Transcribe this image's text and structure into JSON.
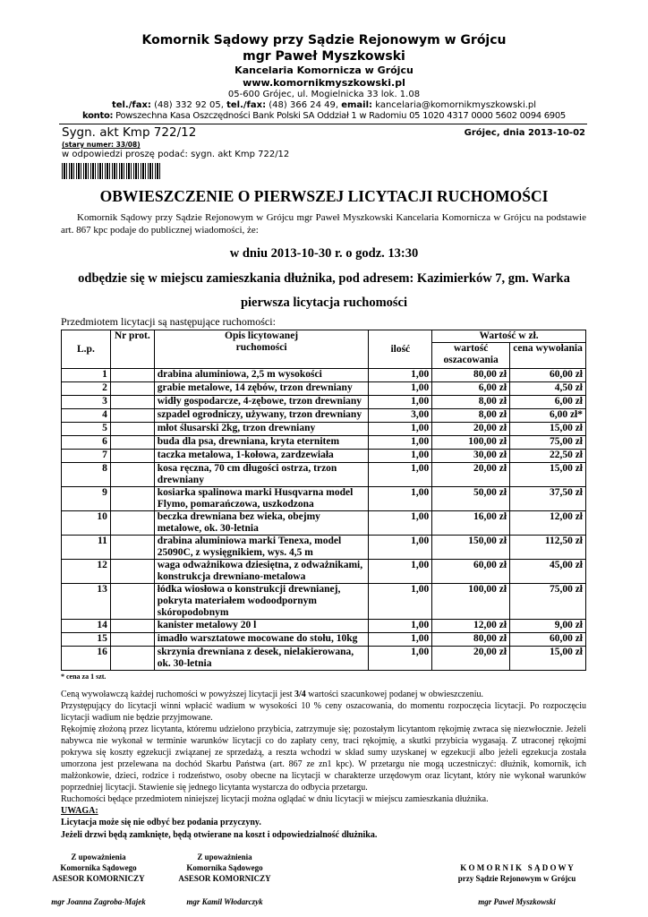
{
  "header": {
    "line1": "Komornik Sądowy przy Sądzie Rejonowym w Grójcu",
    "line2": "mgr Paweł Myszkowski",
    "line3": "Kancelaria Komornicza w Grójcu",
    "website": "www.komornikmyszkowski.pl",
    "address": "05-600 Grójec, ul. Mogielnicka 33 lok. 1.08",
    "tel1_label": "tel./fax:",
    "tel1": " (48) 332 92 05, ",
    "tel2_label": "tel./fax:",
    "tel2": " (48) 366 24 49, ",
    "email_label": "email:",
    "email": " kancelaria@komornikmyszkowski.pl",
    "konto_label": "konto:",
    "konto": " Powszechna Kasa Oszczędności Bank Polski SA Oddział 1 w Radomiu 05 1020 4317 0000 5602 0094 6905"
  },
  "ref": {
    "sygn": "Sygn. akt Kmp 722/12",
    "date": "Grójec, dnia 2013-10-02",
    "old_number": "(stary numer: 33/08)",
    "reply": "w odpowiedzi proszę podać: sygn. akt Kmp 722/12"
  },
  "title": "OBWIESZCZENIE O PIERWSZEJ LICYTACJI RUCHOMOŚCI",
  "intro": "Komornik Sądowy przy Sądzie Rejonowym w Grójcu mgr Paweł Myszkowski Kancelaria Komornicza w Grójcu na podstawie art. 867 kpc podaje do publicznej wiadomości, że:",
  "when": "w dniu 2013-10-30 r. o godz. 13:30",
  "where": "odbędzie się w miejscu zamieszkania dłużnika, pod adresem: Kazimierków 7, gm. Warka",
  "kind": "pierwsza licytacja ruchomości",
  "table_caption": "Przedmiotem licytacji są następujące ruchomości:",
  "table": {
    "headers": {
      "lp": "L.p.",
      "nr": "Nr prot.",
      "opis": "Opis licytowanej ruchomości",
      "ilosc": "ilość",
      "wartosc_group": "Wartość w zł.",
      "wartosc": "wartość oszacowania",
      "cena": "cena wywołania"
    },
    "rows": [
      {
        "lp": "1",
        "opis": "drabina aluminiowa, 2,5 m wysokości",
        "ilosc": "1,00",
        "wartosc": "80,00 zł",
        "cena": "60,00 zł"
      },
      {
        "lp": "2",
        "opis": "grabie metalowe, 14 zębów, trzon drewniany",
        "ilosc": "1,00",
        "wartosc": "6,00 zł",
        "cena": "4,50 zł"
      },
      {
        "lp": "3",
        "opis": "widły gospodarcze, 4-zębowe, trzon drewniany",
        "ilosc": "1,00",
        "wartosc": "8,00 zł",
        "cena": "6,00 zł"
      },
      {
        "lp": "4",
        "opis": "szpadel ogrodniczy, używany, trzon drewniany",
        "ilosc": "3,00",
        "wartosc": "8,00 zł",
        "cena": "6,00 zł*"
      },
      {
        "lp": "5",
        "opis": "młot ślusarski 2kg, trzon drewniany",
        "ilosc": "1,00",
        "wartosc": "20,00 zł",
        "cena": "15,00 zł"
      },
      {
        "lp": "6",
        "opis": "buda dla psa, drewniana, kryta eternitem",
        "ilosc": "1,00",
        "wartosc": "100,00 zł",
        "cena": "75,00 zł"
      },
      {
        "lp": "7",
        "opis": "taczka metalowa, 1-kołowa, zardzewiała",
        "ilosc": "1,00",
        "wartosc": "30,00 zł",
        "cena": "22,50 zł"
      },
      {
        "lp": "8",
        "opis": "kosa ręczna, 70 cm długości ostrza, trzon drewniany",
        "ilosc": "1,00",
        "wartosc": "20,00 zł",
        "cena": "15,00 zł"
      },
      {
        "lp": "9",
        "opis": "kosiarka spalinowa marki Husqvarna model Flymo, pomarańczowa, uszkodzona",
        "ilosc": "1,00",
        "wartosc": "50,00 zł",
        "cena": "37,50 zł"
      },
      {
        "lp": "10",
        "opis": "beczka drewniana bez wieka, obejmy metalowe, ok. 30-letnia",
        "ilosc": "1,00",
        "wartosc": "16,00 zł",
        "cena": "12,00 zł"
      },
      {
        "lp": "11",
        "opis": "drabina aluminiowa marki Tenexa, model 25090C, z wysięgnikiem, wys. 4,5 m",
        "ilosc": "1,00",
        "wartosc": "150,00 zł",
        "cena": "112,50 zł"
      },
      {
        "lp": "12",
        "opis": "waga odważnikowa dziesiętna, z odważnikami, konstrukcja drewniano-metalowa",
        "ilosc": "1,00",
        "wartosc": "60,00 zł",
        "cena": "45,00 zł"
      },
      {
        "lp": "13",
        "opis": "łódka wiosłowa o konstrukcji drewnianej, pokryta materiałem wodoodpornym skóropodobnym",
        "ilosc": "1,00",
        "wartosc": "100,00 zł",
        "cena": "75,00 zł"
      },
      {
        "lp": "14",
        "opis": "kanister metalowy 20 l",
        "ilosc": "1,00",
        "wartosc": "12,00 zł",
        "cena": "9,00 zł"
      },
      {
        "lp": "15",
        "opis": "imadło warsztatowe mocowane do stołu, 10kg",
        "ilosc": "1,00",
        "wartosc": "80,00 zł",
        "cena": "60,00 zł"
      },
      {
        "lp": "16",
        "opis": "skrzynia drewniana z desek, nielakierowana, ok. 30-letnia",
        "ilosc": "1,00",
        "wartosc": "20,00 zł",
        "cena": "15,00 zł"
      }
    ],
    "footnote": "* cena za 1 szt."
  },
  "terms": {
    "p1a": "Ceną wywoławczą każdej ruchomości w powyższej licytacji jest ",
    "p1b": "3/4",
    "p1c": " wartości szacunkowej podanej w obwieszczeniu.",
    "p2": "Przystępujący do licytacji winni wpłacić wadium w wysokości 10 % ceny oszacowania, do momentu rozpoczęcia licytacji. Po rozpoczęciu licytacji wadium nie będzie przyjmowane.",
    "p3": "Rękojmię złożoną przez licytanta, któremu udzielono przybicia, zatrzymuje się; pozostałym licytantom rękojmię zwraca się niezwłocznie. Jeżeli nabywca nie wykonał w terminie warunków licytacji co do zapłaty ceny, traci rękojmię, a skutki przybicia wygasają. Z utraconej rękojmi pokrywa się koszty egzekucji związanej ze sprzedażą, a reszta wchodzi w skład sumy uzyskanej w egzekucji albo jeżeli egzekucja została umorzona jest przelewana na dochód Skarbu Państwa (art. 867 ze zn1 kpc). W przetargu nie mogą uczestniczyć: dłużnik, komornik, ich małżonkowie, dzieci, rodzice i rodzeństwo, osoby obecne na licytacji w charakterze urzędowym oraz licytant, który nie wykonał warunków poprzedniej licytacji. Stawienie się jednego licytanta wystarcza do odbycia przetargu.",
    "p4": "Ruchomości będące przedmiotem niniejszej licytacji można oglądać w dniu licytacji w miejscu zamieszkania dłużnika.",
    "uwaga": "UWAGA:",
    "w1": "Licytacja może się nie odbyć bez podania przyczyny.",
    "w2": "Jeżeli drzwi będą zamknięte, będą otwierane na koszt i odpowiedzialność dłużnika."
  },
  "signatures": [
    {
      "l1": "Z upoważnienia",
      "l2": "Komornika Sądowego",
      "l3": "ASESOR KOMORNICZY",
      "name": "mgr Joanna Zagroba-Majek"
    },
    {
      "l1": "Z upoważnienia",
      "l2": "Komornika Sądowego",
      "l3": "ASESOR KOMORNICZY",
      "name": "mgr Kamil Włodarczyk"
    },
    {
      "l1": "K O M O R N I K   S Ą D O W Y",
      "l2": "przy Sądzie Rejonowym w Grójcu",
      "l3": "",
      "name": "mgr Paweł Myszkowski"
    }
  ]
}
